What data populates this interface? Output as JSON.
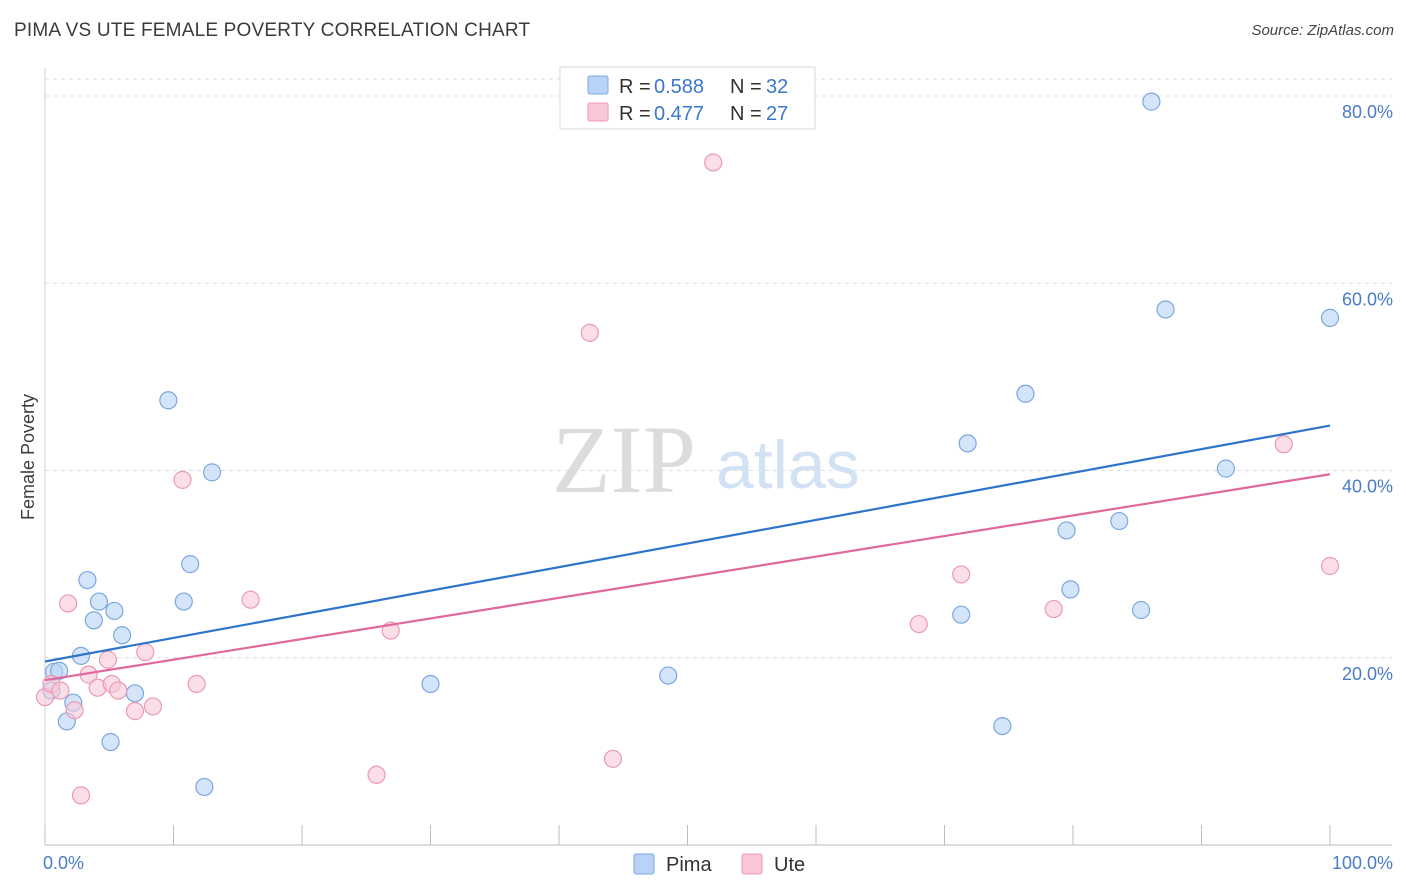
{
  "header": {
    "title": "PIMA VS UTE FEMALE POVERTY CORRELATION CHART",
    "source": "Source: ZipAtlas.com"
  },
  "watermark": {
    "zip": "ZIP",
    "atlas": "atlas"
  },
  "colors": {
    "pima_fill": "#b8d3f5",
    "pima_stroke": "#7aa8de",
    "pima_line": "#2f74cc",
    "ute_fill": "#f8c8d7",
    "ute_stroke": "#eb9ab4",
    "ute_line": "#e0689a",
    "tick_text": "#4a7cc7",
    "grid": "#dedede"
  },
  "legend": {
    "rows": [
      {
        "r_label": "R = ",
        "r_value": "0.588",
        "n_label": "N = ",
        "n_value": "32"
      },
      {
        "r_label": "R = ",
        "r_value": "0.477",
        "n_label": "N = ",
        "n_value": "27"
      }
    ]
  },
  "chart_data": {
    "type": "scatter",
    "title": "PIMA VS UTE FEMALE POVERTY CORRELATION CHART",
    "xlabel": "",
    "ylabel": "Female Poverty",
    "xlim": [
      0,
      100
    ],
    "ylim": [
      0,
      82
    ],
    "x_tick_labels": [
      "0.0%",
      "100.0%"
    ],
    "y_ticks": [
      20,
      40,
      60,
      80
    ],
    "y_tick_labels": [
      "20.0%",
      "40.0%",
      "60.0%",
      "80.0%"
    ],
    "grid": "horizontal dashed",
    "legend_placement": "top-center",
    "bottom_legend": [
      "Pima",
      "Ute"
    ],
    "series": [
      {
        "name": "Pima",
        "color": "#b8d3f5",
        "points": [
          [
            0.5,
            16.5
          ],
          [
            0.7,
            18.5
          ],
          [
            1.1,
            18.6
          ],
          [
            1.7,
            13.2
          ],
          [
            2.2,
            15.2
          ],
          [
            2.8,
            20.2
          ],
          [
            3.3,
            28.3
          ],
          [
            3.8,
            24.0
          ],
          [
            4.2,
            26.0
          ],
          [
            5.1,
            11.0
          ],
          [
            5.4,
            25.0
          ],
          [
            6.0,
            22.4
          ],
          [
            7.0,
            16.2
          ],
          [
            9.6,
            47.5
          ],
          [
            10.8,
            26.0
          ],
          [
            11.3,
            30.0
          ],
          [
            12.4,
            6.2
          ],
          [
            13.0,
            39.8
          ],
          [
            30.0,
            17.2
          ],
          [
            48.5,
            18.1
          ],
          [
            71.3,
            24.6
          ],
          [
            71.8,
            42.9
          ],
          [
            74.5,
            12.7
          ],
          [
            76.3,
            48.2
          ],
          [
            79.5,
            33.6
          ],
          [
            79.8,
            27.3
          ],
          [
            83.6,
            34.6
          ],
          [
            85.3,
            25.1
          ],
          [
            86.1,
            79.4
          ],
          [
            87.2,
            57.2
          ],
          [
            91.9,
            40.2
          ],
          [
            100.0,
            56.3
          ]
        ],
        "trend": {
          "x": [
            0,
            100
          ],
          "y": [
            19.6,
            44.8
          ]
        }
      },
      {
        "name": "Ute",
        "color": "#f8c8d7",
        "points": [
          [
            0.0,
            15.8
          ],
          [
            0.5,
            17.2
          ],
          [
            1.2,
            16.5
          ],
          [
            1.8,
            25.8
          ],
          [
            2.3,
            14.4
          ],
          [
            2.8,
            5.3
          ],
          [
            3.4,
            18.2
          ],
          [
            4.1,
            16.8
          ],
          [
            4.9,
            19.8
          ],
          [
            5.2,
            17.2
          ],
          [
            5.7,
            16.5
          ],
          [
            7.0,
            14.3
          ],
          [
            7.8,
            20.6
          ],
          [
            8.4,
            14.8
          ],
          [
            10.7,
            39.0
          ],
          [
            11.8,
            17.2
          ],
          [
            16.0,
            26.2
          ],
          [
            25.8,
            7.5
          ],
          [
            26.9,
            22.9
          ],
          [
            42.4,
            54.7
          ],
          [
            44.2,
            9.2
          ],
          [
            52.0,
            72.9
          ],
          [
            68.0,
            23.6
          ],
          [
            71.3,
            28.9
          ],
          [
            78.5,
            25.2
          ],
          [
            96.4,
            42.8
          ],
          [
            100.0,
            29.8
          ]
        ],
        "trend": {
          "x": [
            0,
            100
          ],
          "y": [
            17.6,
            39.6
          ]
        }
      }
    ]
  }
}
